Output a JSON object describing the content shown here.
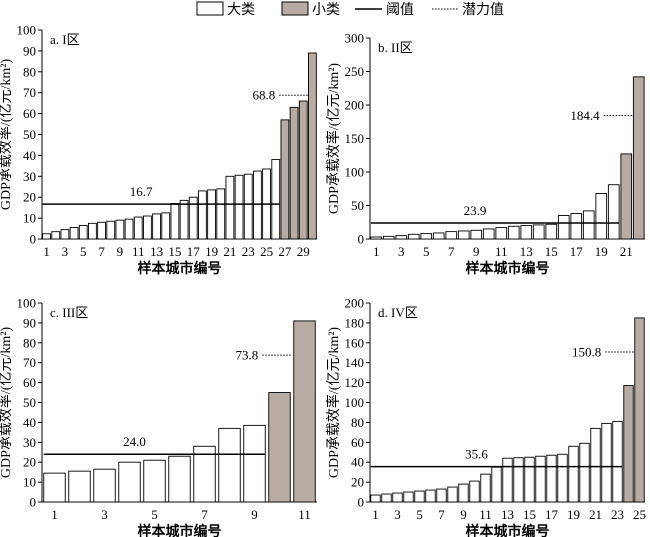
{
  "legend": {
    "large_label": "大类",
    "small_label": "小类",
    "threshold_label": "阈值",
    "potential_label": "潜力值"
  },
  "colors": {
    "large_fill": "#ffffff",
    "small_fill": "#b8aba4",
    "bar_stroke": "#000000",
    "line": "#000000"
  },
  "chart_data": [
    {
      "type": "bar",
      "title": "a. I区",
      "xlabel": "样本城市编号",
      "ylabel": "GDP承载效率/(亿元/km²)",
      "ylim": [
        0,
        100
      ],
      "yticks": [
        0,
        10,
        20,
        30,
        40,
        50,
        60,
        70,
        80,
        90,
        100
      ],
      "categories": [
        1,
        2,
        3,
        4,
        5,
        6,
        7,
        8,
        9,
        10,
        11,
        12,
        13,
        14,
        15,
        16,
        17,
        18,
        19,
        20,
        21,
        22,
        23,
        24,
        25,
        26,
        27,
        28,
        29,
        30
      ],
      "xtick_labels": [
        "1",
        "3",
        "5",
        "7",
        "9",
        "11",
        "13",
        "15",
        "17",
        "19",
        "21",
        "23",
        "25",
        "27",
        "29"
      ],
      "xtick_positions": [
        1,
        3,
        5,
        7,
        9,
        11,
        13,
        15,
        17,
        19,
        21,
        23,
        25,
        27,
        29
      ],
      "values": [
        2.5,
        3.5,
        4.5,
        5.5,
        6.5,
        7.5,
        8,
        8.5,
        9,
        9.5,
        10.5,
        11,
        12,
        12.5,
        17,
        18.5,
        20,
        23,
        23.5,
        24,
        30,
        30.5,
        31,
        32.5,
        33.5,
        38,
        57,
        63,
        66,
        89
      ],
      "classes": [
        "L",
        "L",
        "L",
        "L",
        "L",
        "L",
        "L",
        "L",
        "L",
        "L",
        "L",
        "L",
        "L",
        "L",
        "L",
        "L",
        "L",
        "L",
        "L",
        "L",
        "L",
        "L",
        "L",
        "L",
        "L",
        "L",
        "S",
        "S",
        "S",
        "S"
      ],
      "threshold": 16.7,
      "threshold_label": "16.7",
      "threshold_x_range": [
        1,
        26
      ],
      "potential": 68.8,
      "potential_label": "68.8"
    },
    {
      "type": "bar",
      "title": "b. II区",
      "xlabel": "样本城市编号",
      "ylabel": "GDP承载效率/(亿元/km²)",
      "ylim": [
        0,
        300
      ],
      "yticks": [
        0,
        50,
        100,
        150,
        200,
        250,
        300
      ],
      "categories": [
        1,
        2,
        3,
        4,
        5,
        6,
        7,
        8,
        9,
        10,
        11,
        12,
        13,
        14,
        15,
        16,
        17,
        18,
        19,
        20,
        21,
        22
      ],
      "xtick_labels": [
        "1",
        "3",
        "5",
        "7",
        "9",
        "11",
        "13",
        "15",
        "17",
        "19",
        "21"
      ],
      "xtick_positions": [
        1,
        3,
        5,
        7,
        9,
        11,
        13,
        15,
        17,
        19,
        21
      ],
      "values": [
        3,
        4,
        5,
        7,
        8,
        9,
        11,
        12,
        13,
        15,
        17,
        19,
        20,
        21,
        22,
        35,
        38,
        42,
        68,
        81,
        127,
        242
      ],
      "classes": [
        "L",
        "L",
        "L",
        "L",
        "L",
        "L",
        "L",
        "L",
        "L",
        "L",
        "L",
        "L",
        "L",
        "L",
        "L",
        "L",
        "L",
        "L",
        "L",
        "L",
        "S",
        "S"
      ],
      "threshold": 23.9,
      "threshold_label": "23.9",
      "threshold_x_range": [
        1,
        20
      ],
      "potential": 184.4,
      "potential_label": "184.4"
    },
    {
      "type": "bar",
      "title": "c. III区",
      "xlabel": "样本城市编号",
      "ylabel": "GDP承载效率/(亿元/km²)",
      "ylim": [
        0,
        100
      ],
      "yticks": [
        0,
        10,
        20,
        30,
        40,
        50,
        60,
        70,
        80,
        90,
        100
      ],
      "categories": [
        1,
        2,
        3,
        4,
        5,
        6,
        7,
        8,
        9,
        10,
        11
      ],
      "xtick_labels": [
        "1",
        "3",
        "5",
        "7",
        "9",
        "11"
      ],
      "xtick_positions": [
        1,
        3,
        5,
        7,
        9,
        11
      ],
      "values": [
        14.5,
        15.5,
        16.5,
        20,
        21,
        23,
        28,
        37,
        38.5,
        55,
        91
      ],
      "classes": [
        "L",
        "L",
        "L",
        "L",
        "L",
        "L",
        "L",
        "L",
        "L",
        "S",
        "S"
      ],
      "threshold": 24.0,
      "threshold_label": "24.0",
      "threshold_x_range": [
        1,
        9
      ],
      "potential": 73.8,
      "potential_label": "73.8"
    },
    {
      "type": "bar",
      "title": "d. IV区",
      "xlabel": "样本城市编号",
      "ylabel": "GDP承载效率/(亿元/km²)",
      "ylim": [
        0,
        200
      ],
      "yticks": [
        0,
        20,
        40,
        60,
        80,
        100,
        120,
        140,
        160,
        180,
        200
      ],
      "categories": [
        1,
        2,
        3,
        4,
        5,
        6,
        7,
        8,
        9,
        10,
        11,
        12,
        13,
        14,
        15,
        16,
        17,
        18,
        19,
        20,
        21,
        22,
        23,
        24,
        25
      ],
      "xtick_labels": [
        "1",
        "3",
        "5",
        "7",
        "9",
        "11",
        "13",
        "15",
        "17",
        "19",
        "21",
        "23",
        "25"
      ],
      "xtick_positions": [
        1,
        3,
        5,
        7,
        9,
        11,
        13,
        15,
        17,
        19,
        21,
        23,
        25
      ],
      "values": [
        7,
        8,
        9,
        10,
        11,
        12,
        13,
        15,
        18,
        21,
        28,
        35,
        44,
        44.5,
        45,
        46,
        47,
        48,
        56,
        59,
        74,
        79,
        81,
        117,
        185
      ],
      "classes": [
        "L",
        "L",
        "L",
        "L",
        "L",
        "L",
        "L",
        "L",
        "L",
        "L",
        "L",
        "L",
        "L",
        "L",
        "L",
        "L",
        "L",
        "L",
        "L",
        "L",
        "L",
        "L",
        "L",
        "S",
        "S"
      ],
      "threshold": 35.6,
      "threshold_label": "35.6",
      "threshold_x_range": [
        1,
        23
      ],
      "potential": 150.8,
      "potential_label": "150.8"
    }
  ]
}
